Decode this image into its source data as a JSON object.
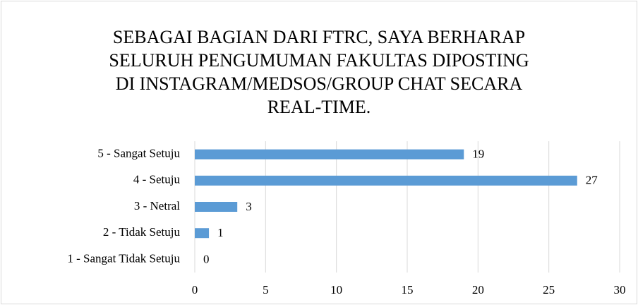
{
  "chart_data": {
    "type": "barh",
    "title": "SEBAGAI BAGIAN DARI FTRC, SAYA BERHARAP SELURUH PENGUMUMAN FAKULTAS DIPOSTING DI INSTAGRAM/MEDSOS/GROUP CHAT SECARA REAL-TIME.",
    "categories": [
      "5 - Sangat Setuju",
      "4 - Setuju",
      "3 - Netral",
      "2 - Tidak Setuju",
      "1 - Sangat Tidak Setuju"
    ],
    "values": [
      19,
      27,
      3,
      1,
      0
    ],
    "color": "#5b9bd5",
    "xlim": [
      0,
      30
    ],
    "xticks": [
      0,
      5,
      10,
      15,
      20,
      25,
      30
    ],
    "grid": true
  }
}
